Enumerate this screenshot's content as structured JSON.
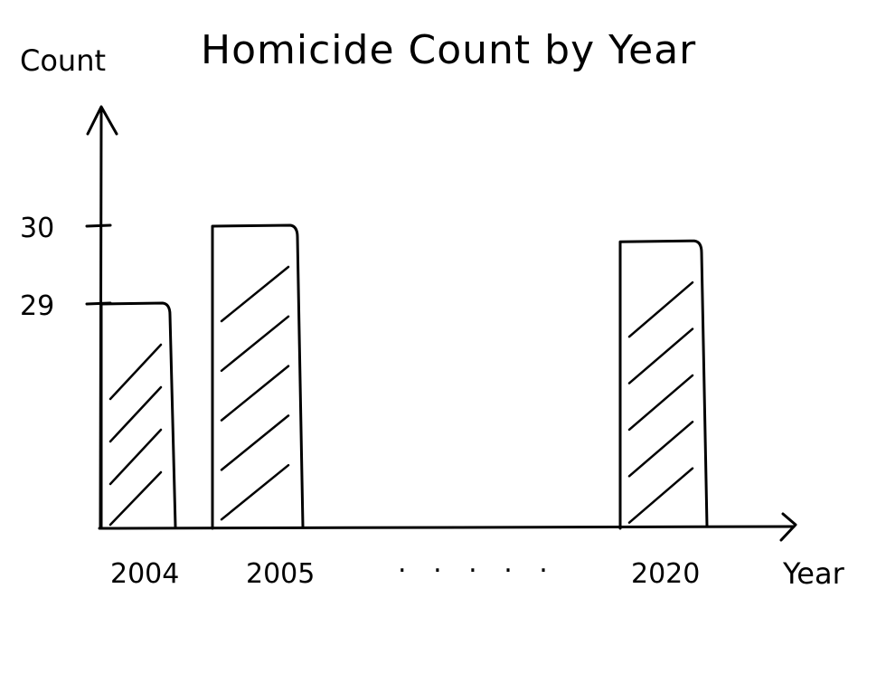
{
  "chart_data": {
    "type": "bar",
    "title": "Homicide Count by Year",
    "xlabel": "Year",
    "ylabel": "Count",
    "categories": [
      "2004",
      "2005",
      "2020"
    ],
    "values": [
      29,
      30,
      29.8
    ],
    "y_ticks": [
      29,
      30
    ],
    "ellipsis": ". . . . .",
    "fill": "hatched"
  }
}
